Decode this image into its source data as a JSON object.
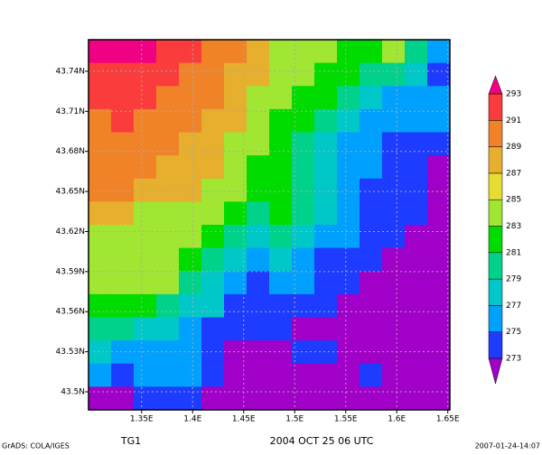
{
  "chart_data": {
    "type": "heatmap",
    "title": "2004 OCT 25 06 UTC",
    "variable_label": "TG1",
    "credit": "GrADS: COLA/IGES",
    "timestamp": "2007-01-24-14:07",
    "xlim": [
      1.298,
      1.652
    ],
    "ylim": [
      43.4865,
      43.7636
    ],
    "xticks": [
      {
        "value": 1.35,
        "label": "1.35E"
      },
      {
        "value": 1.4,
        "label": "1.4E"
      },
      {
        "value": 1.45,
        "label": "1.45E"
      },
      {
        "value": 1.5,
        "label": "1.5E"
      },
      {
        "value": 1.55,
        "label": "1.55E"
      },
      {
        "value": 1.6,
        "label": "1.6E"
      },
      {
        "value": 1.65,
        "label": "1.65E"
      }
    ],
    "yticks": [
      {
        "value": 43.5,
        "label": "43.5N"
      },
      {
        "value": 43.53,
        "label": "43.53N"
      },
      {
        "value": 43.56,
        "label": "43.56N"
      },
      {
        "value": 43.59,
        "label": "43.59N"
      },
      {
        "value": 43.62,
        "label": "43.62N"
      },
      {
        "value": 43.65,
        "label": "43.65N"
      },
      {
        "value": 43.68,
        "label": "43.68N"
      },
      {
        "value": 43.71,
        "label": "43.71N"
      },
      {
        "value": 43.74,
        "label": "43.74N"
      }
    ],
    "grid": true,
    "levels": [
      273,
      275,
      277,
      279,
      281,
      283,
      285,
      287,
      289,
      291,
      293
    ],
    "colors": [
      "#a000c8",
      "#1e3cff",
      "#00a0ff",
      "#00c8c8",
      "#00d28c",
      "#00dc00",
      "#a0e632",
      "#e6dc32",
      "#e6af2d",
      "#f08228",
      "#fa3c3c",
      "#f00082"
    ],
    "z": [
      [
        294,
        294,
        294,
        292,
        292,
        290,
        290,
        288,
        284,
        284,
        284,
        282,
        282,
        284,
        280,
        276
      ],
      [
        292,
        292,
        292,
        292,
        290,
        290,
        288,
        288,
        284,
        284,
        282,
        282,
        280,
        280,
        278,
        274
      ],
      [
        292,
        292,
        292,
        290,
        290,
        290,
        288,
        284,
        284,
        282,
        282,
        280,
        278,
        276,
        276,
        276
      ],
      [
        290,
        292,
        290,
        290,
        290,
        288,
        288,
        284,
        282,
        282,
        280,
        278,
        276,
        276,
        276,
        276
      ],
      [
        290,
        290,
        290,
        290,
        288,
        288,
        284,
        284,
        282,
        280,
        278,
        276,
        276,
        274,
        274,
        274
      ],
      [
        290,
        290,
        290,
        288,
        288,
        288,
        284,
        282,
        282,
        280,
        278,
        276,
        276,
        274,
        274,
        272
      ],
      [
        290,
        290,
        288,
        288,
        288,
        284,
        284,
        282,
        282,
        280,
        278,
        276,
        274,
        274,
        274,
        272
      ],
      [
        288,
        288,
        284,
        284,
        284,
        284,
        282,
        280,
        282,
        280,
        278,
        276,
        274,
        274,
        274,
        272
      ],
      [
        284,
        284,
        284,
        284,
        284,
        282,
        280,
        278,
        280,
        278,
        276,
        276,
        274,
        274,
        272,
        272
      ],
      [
        284,
        284,
        284,
        284,
        282,
        280,
        278,
        276,
        278,
        276,
        274,
        274,
        274,
        272,
        272,
        272
      ],
      [
        284,
        284,
        284,
        284,
        280,
        278,
        276,
        274,
        276,
        276,
        274,
        274,
        272,
        272,
        272,
        272
      ],
      [
        282,
        282,
        282,
        280,
        278,
        278,
        274,
        274,
        274,
        274,
        274,
        272,
        272,
        272,
        272,
        272
      ],
      [
        280,
        280,
        278,
        278,
        276,
        274,
        274,
        274,
        274,
        272,
        272,
        272,
        272,
        272,
        272,
        272
      ],
      [
        278,
        276,
        276,
        276,
        276,
        274,
        272,
        272,
        272,
        274,
        274,
        272,
        272,
        272,
        272,
        272
      ],
      [
        276,
        274,
        276,
        276,
        276,
        274,
        272,
        272,
        272,
        272,
        272,
        272,
        274,
        272,
        272,
        272
      ],
      [
        272,
        272,
        274,
        274,
        274,
        272,
        272,
        272,
        272,
        270,
        270,
        272,
        272,
        272,
        272,
        272
      ]
    ]
  }
}
